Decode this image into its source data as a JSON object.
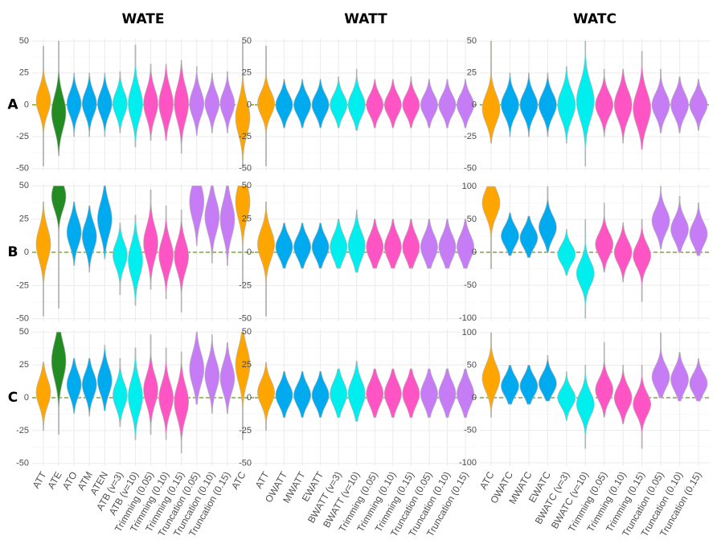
{
  "chart_data": {
    "type": "violin",
    "column_titles": [
      "WATE",
      "WATT",
      "WATC"
    ],
    "row_labels": [
      "A",
      "B",
      "C"
    ],
    "reference_line": 0,
    "colors": {
      "orange": "#FFA500",
      "green": "#228B22",
      "blue": "#00AAEE",
      "cyan": "#00EEEE",
      "pink": "#FF55C4",
      "purple": "#C67CF5"
    },
    "columns": [
      {
        "title": "WATE",
        "categories": [
          "ATT",
          "ATE",
          "ATO",
          "ATM",
          "ATEN",
          "ATB (v=3)",
          "ATB (v=10)",
          "Trimming (0.05)",
          "Trimming (0.10)",
          "Trimming (0.15)",
          "Truncation (0.05)",
          "Truncation (0.10)",
          "Truncation (0.15)",
          "ATC"
        ],
        "category_colors": [
          "orange",
          "green",
          "blue",
          "blue",
          "blue",
          "cyan",
          "cyan",
          "pink",
          "pink",
          "pink",
          "purple",
          "purple",
          "purple",
          "orange"
        ]
      },
      {
        "title": "WATT",
        "categories": [
          "ATT",
          "OWATT",
          "MWATT",
          "EWATT",
          "BWATT (v=3)",
          "BWATT (v=10)",
          "Trimming (0.05)",
          "Trimming (0.10)",
          "Trimming (0.15)",
          "Truncation (0.05)",
          "Truncation (0.10)",
          "Truncation (0.15)"
        ],
        "category_colors": [
          "orange",
          "blue",
          "blue",
          "blue",
          "cyan",
          "cyan",
          "pink",
          "pink",
          "pink",
          "purple",
          "purple",
          "purple"
        ]
      },
      {
        "title": "WATC",
        "categories": [
          "ATC",
          "OWATC",
          "MWATC",
          "EWATC",
          "BWATC (v=3)",
          "BWATC (v=10)",
          "Trimming (0.05)",
          "Trimming (0.10)",
          "Trimming (0.15)",
          "Truncation (0.05)",
          "Truncation (0.10)",
          "Truncation (0.15)"
        ],
        "category_colors": [
          "orange",
          "blue",
          "blue",
          "blue",
          "cyan",
          "cyan",
          "pink",
          "pink",
          "pink",
          "purple",
          "purple",
          "purple"
        ]
      }
    ],
    "panels": [
      {
        "row": "A",
        "column": "WATE",
        "ylim": [
          -52,
          52
        ],
        "yticks": [
          -50,
          -25,
          0,
          25,
          50
        ],
        "series": [
          {
            "center": 3,
            "spread": 10,
            "min": -48,
            "max": 46
          },
          {
            "center": -6,
            "spread": 13,
            "min": -40,
            "max": 50
          },
          {
            "center": 1,
            "spread": 9,
            "min": -25,
            "max": 25
          },
          {
            "center": 1,
            "spread": 9,
            "min": -25,
            "max": 25
          },
          {
            "center": 1,
            "spread": 9,
            "min": -25,
            "max": 25
          },
          {
            "center": 1,
            "spread": 9,
            "min": -22,
            "max": 26
          },
          {
            "center": 1,
            "spread": 12,
            "min": -33,
            "max": 47
          },
          {
            "center": 1,
            "spread": 11,
            "min": -28,
            "max": 32
          },
          {
            "center": 1,
            "spread": 12,
            "min": -28,
            "max": 32
          },
          {
            "center": 1,
            "spread": 13,
            "min": -38,
            "max": 35
          },
          {
            "center": 1,
            "spread": 10,
            "min": -24,
            "max": 30
          },
          {
            "center": 1,
            "spread": 9,
            "min": -22,
            "max": 25
          },
          {
            "center": 1,
            "spread": 9,
            "min": -22,
            "max": 26
          },
          {
            "center": -10,
            "spread": 13,
            "min": -48,
            "max": 49
          }
        ]
      },
      {
        "row": "A",
        "column": "WATT",
        "ylim": [
          -52,
          52
        ],
        "yticks": [
          -50,
          -25,
          0,
          25,
          50
        ],
        "series": [
          {
            "center": 1,
            "spread": 9,
            "min": -48,
            "max": 46
          },
          {
            "center": 0,
            "spread": 8,
            "min": -18,
            "max": 20
          },
          {
            "center": 0,
            "spread": 8,
            "min": -18,
            "max": 20
          },
          {
            "center": 0,
            "spread": 8,
            "min": -18,
            "max": 20
          },
          {
            "center": 0,
            "spread": 8,
            "min": -18,
            "max": 22
          },
          {
            "center": 0,
            "spread": 9,
            "min": -20,
            "max": 28
          },
          {
            "center": 0,
            "spread": 8,
            "min": -18,
            "max": 20
          },
          {
            "center": 0,
            "spread": 8,
            "min": -18,
            "max": 20
          },
          {
            "center": 0,
            "spread": 8,
            "min": -18,
            "max": 22
          },
          {
            "center": 0,
            "spread": 8,
            "min": -18,
            "max": 20
          },
          {
            "center": 0,
            "spread": 8,
            "min": -18,
            "max": 20
          },
          {
            "center": 0,
            "spread": 8,
            "min": -18,
            "max": 20
          }
        ]
      },
      {
        "row": "A",
        "column": "WATC",
        "ylim": [
          -52,
          52
        ],
        "yticks": [
          -50,
          -25,
          0,
          25,
          50
        ],
        "series": [
          {
            "center": -3,
            "spread": 11,
            "min": -30,
            "max": 50
          },
          {
            "center": 0,
            "spread": 9,
            "min": -25,
            "max": 25
          },
          {
            "center": 0,
            "spread": 9,
            "min": -25,
            "max": 25
          },
          {
            "center": 0,
            "spread": 9,
            "min": -25,
            "max": 25
          },
          {
            "center": 0,
            "spread": 11,
            "min": -30,
            "max": 30
          },
          {
            "center": 3,
            "spread": 14,
            "min": -48,
            "max": 50
          },
          {
            "center": 0,
            "spread": 9,
            "min": -25,
            "max": 28
          },
          {
            "center": 0,
            "spread": 11,
            "min": -30,
            "max": 28
          },
          {
            "center": -3,
            "spread": 13,
            "min": -35,
            "max": 42
          },
          {
            "center": 0,
            "spread": 9,
            "min": -22,
            "max": 28
          },
          {
            "center": 0,
            "spread": 9,
            "min": -22,
            "max": 22
          },
          {
            "center": 0,
            "spread": 8,
            "min": -20,
            "max": 20
          }
        ]
      },
      {
        "row": "B",
        "column": "WATE",
        "ylim": [
          -52,
          52
        ],
        "yticks": [
          -50,
          -25,
          0,
          25,
          50
        ],
        "series": [
          {
            "center": 6,
            "spread": 12,
            "min": -48,
            "max": 38
          },
          {
            "center": 42,
            "spread": 10,
            "min": -42,
            "max": 50
          },
          {
            "center": 15,
            "spread": 10,
            "min": -10,
            "max": 38
          },
          {
            "center": 12,
            "spread": 10,
            "min": -15,
            "max": 35
          },
          {
            "center": 25,
            "spread": 12,
            "min": -5,
            "max": 50
          },
          {
            "center": -2,
            "spread": 9,
            "min": -32,
            "max": 22
          },
          {
            "center": -6,
            "spread": 12,
            "min": -40,
            "max": 28
          },
          {
            "center": 7,
            "spread": 12,
            "min": -28,
            "max": 47
          },
          {
            "center": -2,
            "spread": 11,
            "min": -35,
            "max": 35
          },
          {
            "center": -3,
            "spread": 11,
            "min": -45,
            "max": 32
          },
          {
            "center": 38,
            "spread": 13,
            "min": 5,
            "max": 50
          },
          {
            "center": 27,
            "spread": 12,
            "min": -8,
            "max": 50
          },
          {
            "center": 25,
            "spread": 13,
            "min": -10,
            "max": 50
          },
          {
            "center": 38,
            "spread": 13,
            "min": -25,
            "max": 50
          }
        ]
      },
      {
        "row": "B",
        "column": "WATT",
        "ylim": [
          -52,
          52
        ],
        "yticks": [
          -50,
          -25,
          0,
          25,
          50
        ],
        "series": [
          {
            "center": 6,
            "spread": 11,
            "min": -48,
            "max": 38
          },
          {
            "center": 4,
            "spread": 8,
            "min": -12,
            "max": 22
          },
          {
            "center": 4,
            "spread": 8,
            "min": -12,
            "max": 22
          },
          {
            "center": 4,
            "spread": 8,
            "min": -12,
            "max": 22
          },
          {
            "center": 4,
            "spread": 9,
            "min": -12,
            "max": 25
          },
          {
            "center": 5,
            "spread": 10,
            "min": -15,
            "max": 32
          },
          {
            "center": 4,
            "spread": 9,
            "min": -12,
            "max": 25
          },
          {
            "center": 4,
            "spread": 9,
            "min": -12,
            "max": 25
          },
          {
            "center": 4,
            "spread": 9,
            "min": -12,
            "max": 25
          },
          {
            "center": 4,
            "spread": 9,
            "min": -12,
            "max": 25
          },
          {
            "center": 4,
            "spread": 9,
            "min": -12,
            "max": 25
          },
          {
            "center": 4,
            "spread": 9,
            "min": -12,
            "max": 25
          }
        ]
      },
      {
        "row": "B",
        "column": "WATC",
        "ylim": [
          -105,
          105
        ],
        "yticks": [
          -100,
          -50,
          0,
          50,
          100
        ],
        "series": [
          {
            "center": 75,
            "spread": 20,
            "min": -25,
            "max": 100
          },
          {
            "center": 25,
            "spread": 15,
            "min": -5,
            "max": 60
          },
          {
            "center": 22,
            "spread": 15,
            "min": -8,
            "max": 55
          },
          {
            "center": 38,
            "spread": 17,
            "min": 0,
            "max": 100
          },
          {
            "center": -3,
            "spread": 14,
            "min": -35,
            "max": 35
          },
          {
            "center": -32,
            "spread": 18,
            "min": -100,
            "max": 50
          },
          {
            "center": 12,
            "spread": 17,
            "min": -30,
            "max": 75
          },
          {
            "center": 0,
            "spread": 17,
            "min": -45,
            "max": 45
          },
          {
            "center": -5,
            "spread": 17,
            "min": -75,
            "max": 50
          },
          {
            "center": 48,
            "spread": 18,
            "min": 5,
            "max": 100
          },
          {
            "center": 35,
            "spread": 17,
            "min": 0,
            "max": 85
          },
          {
            "center": 28,
            "spread": 17,
            "min": -5,
            "max": 75
          }
        ]
      },
      {
        "row": "C",
        "column": "WATE",
        "ylim": [
          -52,
          52
        ],
        "yticks": [
          -50,
          -25,
          0,
          25,
          50
        ],
        "series": [
          {
            "center": 4,
            "spread": 10,
            "min": -25,
            "max": 27
          },
          {
            "center": 28,
            "spread": 14,
            "min": -28,
            "max": 50
          },
          {
            "center": 10,
            "spread": 9,
            "min": -12,
            "max": 30
          },
          {
            "center": 10,
            "spread": 9,
            "min": -14,
            "max": 30
          },
          {
            "center": 13,
            "spread": 10,
            "min": -10,
            "max": 40
          },
          {
            "center": 2,
            "spread": 9,
            "min": -22,
            "max": 30
          },
          {
            "center": 1,
            "spread": 12,
            "min": -32,
            "max": 38
          },
          {
            "center": 6,
            "spread": 11,
            "min": -28,
            "max": 48
          },
          {
            "center": 0,
            "spread": 11,
            "min": -32,
            "max": 38
          },
          {
            "center": -3,
            "spread": 12,
            "min": -42,
            "max": 35
          },
          {
            "center": 22,
            "spread": 12,
            "min": -5,
            "max": 50
          },
          {
            "center": 17,
            "spread": 11,
            "min": -12,
            "max": 48
          },
          {
            "center": 15,
            "spread": 11,
            "min": -12,
            "max": 42
          },
          {
            "center": 25,
            "spread": 13,
            "min": -32,
            "max": 50
          }
        ]
      },
      {
        "row": "C",
        "column": "WATT",
        "ylim": [
          -52,
          52
        ],
        "yticks": [
          -50,
          -25,
          0,
          25,
          50
        ],
        "series": [
          {
            "center": 4,
            "spread": 9,
            "min": -25,
            "max": 27
          },
          {
            "center": 2,
            "spread": 8,
            "min": -15,
            "max": 20
          },
          {
            "center": 2,
            "spread": 8,
            "min": -15,
            "max": 20
          },
          {
            "center": 2,
            "spread": 8,
            "min": -15,
            "max": 20
          },
          {
            "center": 3,
            "spread": 9,
            "min": -15,
            "max": 22
          },
          {
            "center": 3,
            "spread": 10,
            "min": -18,
            "max": 28
          },
          {
            "center": 3,
            "spread": 9,
            "min": -15,
            "max": 22
          },
          {
            "center": 3,
            "spread": 9,
            "min": -15,
            "max": 22
          },
          {
            "center": 3,
            "spread": 9,
            "min": -15,
            "max": 22
          },
          {
            "center": 3,
            "spread": 9,
            "min": -15,
            "max": 22
          },
          {
            "center": 3,
            "spread": 9,
            "min": -15,
            "max": 22
          },
          {
            "center": 3,
            "spread": 9,
            "min": -15,
            "max": 22
          }
        ]
      },
      {
        "row": "C",
        "column": "WATC",
        "ylim": [
          -105,
          105
        ],
        "yticks": [
          -100,
          -50,
          0,
          50,
          100
        ],
        "series": [
          {
            "center": 30,
            "spread": 20,
            "min": -30,
            "max": 100
          },
          {
            "center": 18,
            "spread": 15,
            "min": -10,
            "max": 50
          },
          {
            "center": 18,
            "spread": 15,
            "min": -10,
            "max": 50
          },
          {
            "center": 22,
            "spread": 15,
            "min": -5,
            "max": 65
          },
          {
            "center": 0,
            "spread": 14,
            "min": -35,
            "max": 40
          },
          {
            "center": -10,
            "spread": 18,
            "min": -78,
            "max": 50
          },
          {
            "center": 12,
            "spread": 17,
            "min": -30,
            "max": 85
          },
          {
            "center": 0,
            "spread": 17,
            "min": -40,
            "max": 50
          },
          {
            "center": -10,
            "spread": 17,
            "min": -78,
            "max": 50
          },
          {
            "center": 32,
            "spread": 17,
            "min": 0,
            "max": 100
          },
          {
            "center": 28,
            "spread": 17,
            "min": -5,
            "max": 70
          },
          {
            "center": 22,
            "spread": 15,
            "min": -5,
            "max": 60
          }
        ]
      }
    ]
  }
}
